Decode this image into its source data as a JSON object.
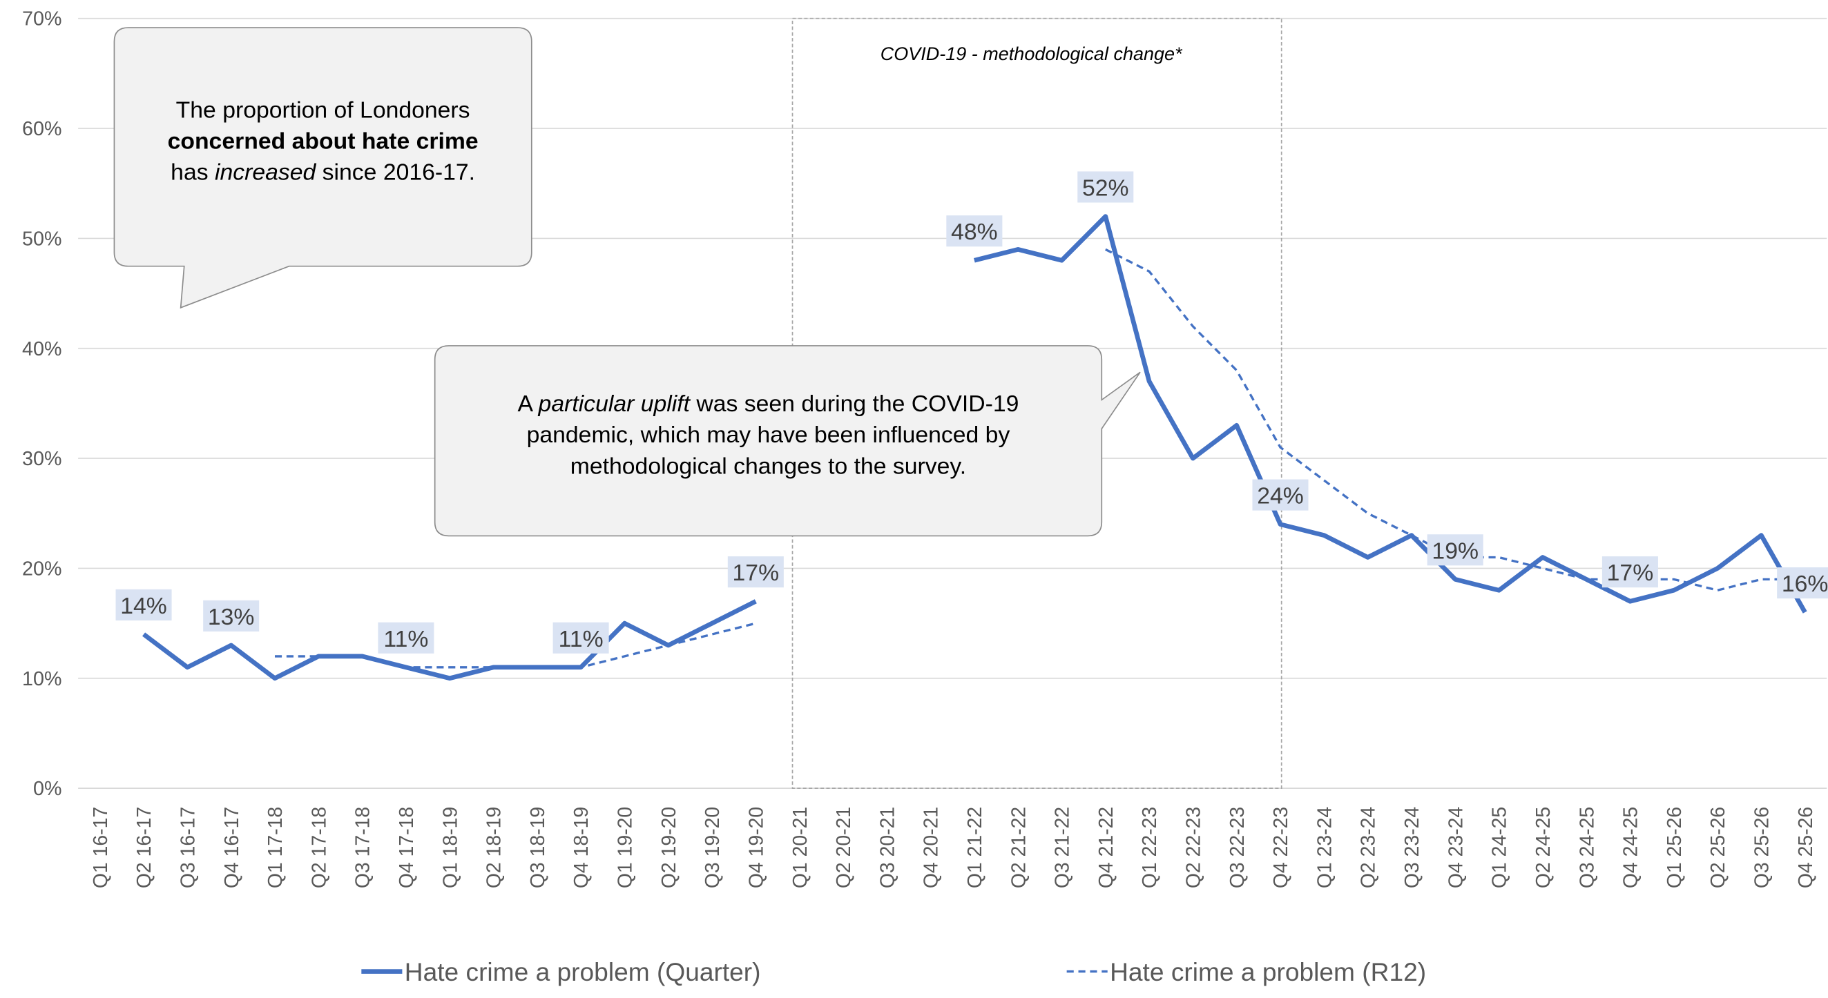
{
  "chart_data": {
    "type": "line",
    "categories": [
      "Q1 16-17",
      "Q2 16-17",
      "Q3 16-17",
      "Q4 16-17",
      "Q1 17-18",
      "Q2 17-18",
      "Q3 17-18",
      "Q4 17-18",
      "Q1 18-19",
      "Q2 18-19",
      "Q3 18-19",
      "Q4 18-19",
      "Q1 19-20",
      "Q2 19-20",
      "Q3 19-20",
      "Q4 19-20",
      "Q1 20-21",
      "Q2 20-21",
      "Q3 20-21",
      "Q4 20-21",
      "Q1 21-22",
      "Q2 21-22",
      "Q3 21-22",
      "Q4 21-22",
      "Q1 22-23",
      "Q2 22-23",
      "Q3 22-23",
      "Q4 22-23",
      "Q1 23-24",
      "Q2 23-24",
      "Q3 23-24",
      "Q4 23-24",
      "Q1 24-25",
      "Q2 24-25",
      "Q3 24-25",
      "Q4 24-25",
      "Q1 25-26",
      "Q2 25-26",
      "Q3 25-26",
      "Q4 25-26"
    ],
    "series": [
      {
        "name": "Hate crime a problem (Quarter)",
        "color": "#4472c4",
        "dash": false,
        "values": [
          null,
          14,
          11,
          13,
          10,
          12,
          12,
          11,
          10,
          11,
          11,
          11,
          15,
          13,
          15,
          17,
          null,
          null,
          null,
          null,
          48,
          49,
          48,
          52,
          37,
          30,
          33,
          24,
          23,
          21,
          23,
          19,
          18,
          21,
          19,
          17,
          18,
          20,
          23,
          16
        ],
        "value_labels": [
          null,
          "14%",
          null,
          "13%",
          null,
          null,
          null,
          "11%",
          null,
          null,
          null,
          "11%",
          null,
          null,
          null,
          "17%",
          null,
          null,
          null,
          null,
          "48%",
          null,
          null,
          "52%",
          null,
          null,
          null,
          "24%",
          null,
          null,
          null,
          "19%",
          null,
          null,
          null,
          "17%",
          null,
          null,
          null,
          "16%"
        ]
      },
      {
        "name": "Hate crime a problem (R12)",
        "color": "#4472c4",
        "dash": true,
        "values": [
          null,
          null,
          null,
          null,
          12,
          12,
          12,
          11,
          11,
          11,
          11,
          11,
          12,
          13,
          14,
          15,
          null,
          null,
          null,
          null,
          null,
          null,
          null,
          49,
          47,
          42,
          38,
          31,
          28,
          25,
          23,
          21,
          21,
          20,
          19,
          19,
          19,
          18,
          19,
          19
        ]
      }
    ],
    "ylim": [
      0,
      70
    ],
    "yticks": [
      {
        "value": 0,
        "label": "0%"
      },
      {
        "value": 10,
        "label": "10%"
      },
      {
        "value": 20,
        "label": "20%"
      },
      {
        "value": 30,
        "label": "30%"
      },
      {
        "value": 40,
        "label": "40%"
      },
      {
        "value": 50,
        "label": "50%"
      },
      {
        "value": 60,
        "label": "60%"
      },
      {
        "value": 70,
        "label": "70%"
      }
    ],
    "grid": true,
    "legend": "bottom",
    "period_note": "COVID-19 - methodological change*",
    "annotations": [
      {
        "lines": [
          [
            {
              "text": "The proportion of Londoners"
            }
          ],
          [
            {
              "text": "concerned about hate crime",
              "bold": true
            }
          ],
          [
            {
              "text": "has "
            },
            {
              "text": "increased",
              "italic": true
            },
            {
              "text": " since 2016-17."
            }
          ]
        ]
      },
      {
        "lines": [
          [
            {
              "text": "A "
            },
            {
              "text": "particular uplift",
              "italic": true
            },
            {
              "text": " was seen during the COVID-19"
            }
          ],
          [
            {
              "text": "pandemic, which may have been influenced by"
            }
          ],
          [
            {
              "text": "methodological changes to the survey."
            }
          ]
        ]
      }
    ]
  }
}
